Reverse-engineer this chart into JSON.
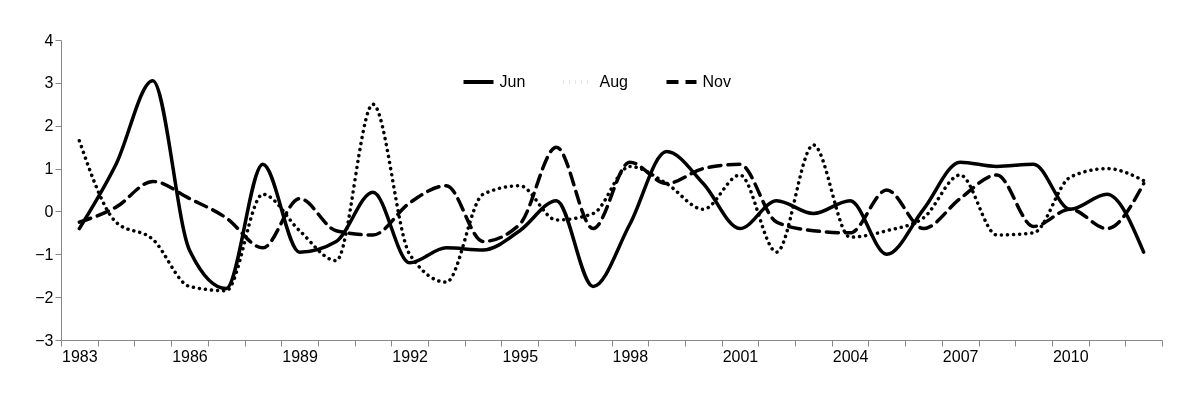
{
  "chart_data": {
    "type": "line",
    "categories": [
      "1983",
      null,
      null,
      "1986",
      null,
      null,
      "1989",
      null,
      null,
      "1992",
      null,
      null,
      "1995",
      null,
      null,
      "1998",
      null,
      null,
      "2001",
      null,
      null,
      "2004",
      null,
      null,
      "2007",
      null,
      null,
      "2010",
      null,
      null
    ],
    "series": [
      {
        "name": "Jun",
        "color": "#000000",
        "line_style": "solid",
        "values": [
          -0.4,
          1.1,
          3.05,
          -0.9,
          -1.8,
          1.1,
          -0.95,
          -0.7,
          0.45,
          -1.2,
          -0.85,
          -0.9,
          -0.45,
          0.25,
          -1.75,
          -0.3,
          1.4,
          0.65,
          -0.4,
          0.25,
          -0.05,
          0.25,
          -1.0,
          0.05,
          1.15,
          1.05,
          1.1,
          0.05,
          0.4,
          -0.95
        ]
      },
      {
        "name": "Aug",
        "color": "#000000",
        "line_style": "dotted",
        "values": [
          1.65,
          -0.25,
          -0.65,
          -1.75,
          -1.85,
          0.4,
          -0.45,
          -1.15,
          2.5,
          -1.0,
          -1.65,
          0.4,
          0.6,
          -0.2,
          -0.05,
          1.05,
          0.65,
          0.05,
          0.85,
          -0.95,
          1.55,
          -0.6,
          -0.45,
          -0.15,
          0.85,
          -0.55,
          -0.5,
          0.8,
          1.0,
          0.72
        ]
      },
      {
        "name": "Nov",
        "color": "#000000",
        "line_style": "dashed",
        "values": [
          -0.25,
          0.1,
          0.7,
          0.3,
          -0.15,
          -0.85,
          0.3,
          -0.45,
          -0.55,
          0.2,
          0.6,
          -0.7,
          -0.3,
          1.5,
          -0.4,
          1.15,
          0.65,
          1.0,
          1.1,
          -0.25,
          -0.45,
          -0.5,
          0.5,
          -0.4,
          0.3,
          0.85,
          -0.35,
          0.05,
          -0.4,
          0.65
        ]
      }
    ],
    "ylim": [
      -3,
      4
    ],
    "yticks": [
      -3,
      -2,
      -1,
      0,
      1,
      2,
      3,
      4
    ],
    "legend": "top",
    "grid": false
  }
}
